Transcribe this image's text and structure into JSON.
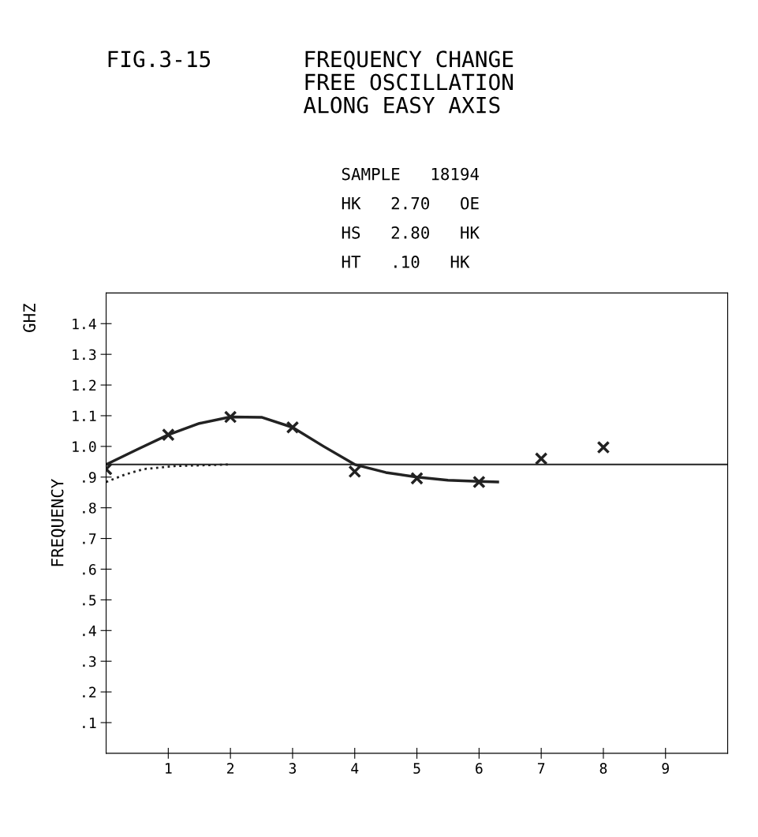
{
  "chart_data": {
    "type": "scatter",
    "title": "FIG.3-15",
    "subtitle": "FREQUENCY CHANGE\nFREE OSCILLATION\nALONG EASY AXIS",
    "ylabel": "FREQUENCY",
    "annotations": [
      "GHZ",
      "SAMPLE   18194",
      "HK   2.70   OE",
      "HS   2.80   HK",
      "HT   .10   HK"
    ],
    "x": [
      0,
      1,
      2,
      3,
      4,
      5,
      6,
      7,
      8
    ],
    "series": [
      {
        "color": "#222222",
        "marker": "cross",
        "values": [
          0.926,
          1.038,
          1.096,
          1.062,
          0.918,
          0.896,
          0.884,
          0.96,
          0.997
        ]
      },
      {
        "type": "line",
        "color": "#222222",
        "marker": "none",
        "line_style": "solid",
        "x": [
          0,
          0.5,
          1,
          1.5,
          2,
          2.5,
          3,
          3.5,
          4,
          4.5,
          5,
          5.5,
          6,
          6.3
        ],
        "values": [
          0.941,
          0.99,
          1.038,
          1.075,
          1.096,
          1.095,
          1.062,
          1.0,
          0.941,
          0.915,
          0.9,
          0.89,
          0.886,
          0.884
        ]
      },
      {
        "type": "line",
        "color": "#222222",
        "marker": "none",
        "line_style": "dotted",
        "x": [
          0,
          0.3,
          0.6,
          1.1,
          2
        ],
        "values": [
          0.884,
          0.908,
          0.926,
          0.936,
          0.941
        ]
      }
    ],
    "ref_lines": [
      {
        "axis": "y",
        "value": 0.941,
        "color": "#222222",
        "line_style": "solid"
      }
    ],
    "xlim": [
      0,
      10
    ],
    "xticks": [
      1,
      2,
      3,
      4,
      5,
      6,
      7,
      8,
      9
    ],
    "ylim": [
      0,
      1.5
    ],
    "yticks": [
      {
        "value": 0.1,
        "label": ".1"
      },
      {
        "value": 0.2,
        "label": ".2"
      },
      {
        "value": 0.3,
        "label": ".3"
      },
      {
        "value": 0.4,
        "label": ".4"
      },
      {
        "value": 0.5,
        "label": ".5"
      },
      {
        "value": 0.6,
        "label": ".6"
      },
      {
        "value": 0.7,
        "label": ".7"
      },
      {
        "value": 0.8,
        "label": ".8"
      },
      {
        "value": 0.9,
        "label": ".9"
      },
      {
        "value": 1.0,
        "label": "1.0"
      },
      {
        "value": 1.1,
        "label": "1.1"
      },
      {
        "value": 1.2,
        "label": "1.2"
      },
      {
        "value": 1.3,
        "label": "1.3"
      },
      {
        "value": 1.4,
        "label": "1.4"
      }
    ],
    "grid": false
  }
}
